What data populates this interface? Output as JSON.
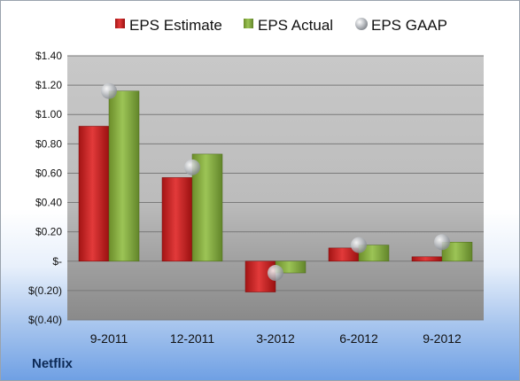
{
  "legend": {
    "estimate_label": "EPS Estimate",
    "actual_label": "EPS Actual",
    "gaap_label": "EPS GAAP"
  },
  "company_label": "Netflix",
  "colors": {
    "estimate": "#d42a2a",
    "actual": "#8fb545",
    "gaap": "#b8bcc2"
  },
  "chart_data": {
    "type": "bar",
    "categories": [
      "9-2011",
      "12-2011",
      "3-2012",
      "6-2012",
      "9-2012"
    ],
    "series": [
      {
        "name": "EPS Estimate",
        "values": [
          0.92,
          0.57,
          -0.21,
          0.09,
          0.03
        ]
      },
      {
        "name": "EPS Actual",
        "values": [
          1.16,
          0.73,
          -0.08,
          0.11,
          0.13
        ]
      },
      {
        "name": "EPS GAAP",
        "values": [
          1.16,
          0.64,
          -0.08,
          0.11,
          0.13
        ]
      }
    ],
    "ylim": [
      -0.4,
      1.4
    ],
    "yticks": [
      1.4,
      1.2,
      1.0,
      0.8,
      0.6,
      0.4,
      0.2,
      0,
      -0.2,
      -0.4
    ],
    "ytick_labels": [
      "$1.40",
      "$1.20",
      "$1.00",
      "$0.80",
      "$0.60",
      "$0.40",
      "$0.20",
      "$-",
      "$(0.20)",
      "$(0.40)"
    ],
    "grid": true,
    "legend_position": "top"
  }
}
